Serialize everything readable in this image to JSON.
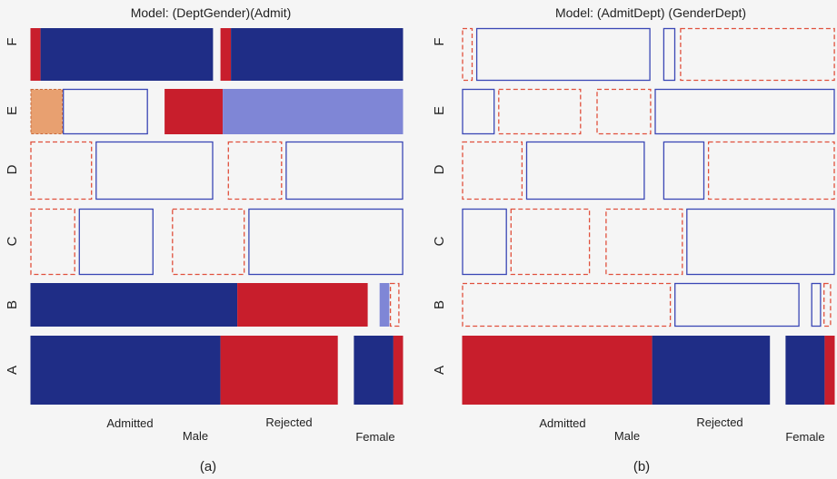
{
  "palette": {
    "strong_pos": "#1f2d86",
    "strong_neg": "#c81e2c",
    "mild_pos": "#7f86d6",
    "mild_neg": "#e8a070",
    "outline_pos": "#3a47b5",
    "outline_neg": "#e0503c",
    "background": "#f5f5f5"
  },
  "chart_data": [
    {
      "type": "mosaic",
      "title": "Model: (DeptGender)(Admit)",
      "caption": "(a)",
      "row_labels": [
        "F",
        "E",
        "D",
        "C",
        "B",
        "A"
      ],
      "col_labels": [
        "Admitted",
        "Male",
        "Rejected",
        "Female"
      ],
      "tiles": [
        {
          "row": "F",
          "x0": 0.0,
          "x1": 0.027,
          "shade": "strong_neg"
        },
        {
          "row": "F",
          "x0": 0.027,
          "x1": 0.49,
          "shade": "strong_pos"
        },
        {
          "row": "F",
          "x0": 0.51,
          "x1": 0.538,
          "shade": "strong_neg"
        },
        {
          "row": "F",
          "x0": 0.538,
          "x1": 1.0,
          "shade": "strong_pos"
        },
        {
          "row": "E",
          "x0": 0.0,
          "x1": 0.087,
          "shade": "mild_neg"
        },
        {
          "row": "E",
          "x0": 0.087,
          "x1": 0.315,
          "shade": "outline_pos"
        },
        {
          "row": "E",
          "x0": 0.36,
          "x1": 0.516,
          "shade": "strong_neg"
        },
        {
          "row": "E",
          "x0": 0.516,
          "x1": 1.0,
          "shade": "mild_pos"
        },
        {
          "row": "D",
          "x0": 0.0,
          "x1": 0.165,
          "shade": "outline_neg"
        },
        {
          "row": "D",
          "x0": 0.175,
          "x1": 0.49,
          "shade": "outline_pos"
        },
        {
          "row": "D",
          "x0": 0.53,
          "x1": 0.675,
          "shade": "outline_neg"
        },
        {
          "row": "D",
          "x0": 0.685,
          "x1": 1.0,
          "shade": "outline_pos"
        },
        {
          "row": "C",
          "x0": 0.0,
          "x1": 0.12,
          "shade": "outline_neg"
        },
        {
          "row": "C",
          "x0": 0.13,
          "x1": 0.33,
          "shade": "outline_pos"
        },
        {
          "row": "C",
          "x0": 0.38,
          "x1": 0.575,
          "shade": "outline_neg"
        },
        {
          "row": "C",
          "x0": 0.585,
          "x1": 1.0,
          "shade": "outline_pos"
        },
        {
          "row": "B",
          "x0": 0.0,
          "x1": 0.555,
          "shade": "strong_pos"
        },
        {
          "row": "B",
          "x0": 0.555,
          "x1": 0.905,
          "shade": "strong_neg"
        },
        {
          "row": "B",
          "x0": 0.937,
          "x1": 0.963,
          "shade": "mild_pos"
        },
        {
          "row": "B",
          "x0": 0.965,
          "x1": 0.99,
          "shade": "outline_neg"
        },
        {
          "row": "A",
          "x0": 0.0,
          "x1": 0.51,
          "shade": "strong_pos"
        },
        {
          "row": "A",
          "x0": 0.51,
          "x1": 0.825,
          "shade": "strong_neg"
        },
        {
          "row": "A",
          "x0": 0.868,
          "x1": 0.974,
          "shade": "strong_pos"
        },
        {
          "row": "A",
          "x0": 0.974,
          "x1": 1.0,
          "shade": "strong_neg"
        }
      ]
    },
    {
      "type": "mosaic",
      "title": "Model: (AdmitDept) (GenderDept)",
      "caption": "(b)",
      "row_labels": [
        "F",
        "E",
        "D",
        "C",
        "B",
        "A"
      ],
      "col_labels": [
        "Admitted",
        "Male",
        "Rejected",
        "Female"
      ],
      "tiles": [
        {
          "row": "F",
          "x0": 0.0,
          "x1": 0.028,
          "shade": "outline_neg"
        },
        {
          "row": "F",
          "x0": 0.038,
          "x1": 0.505,
          "shade": "outline_pos"
        },
        {
          "row": "F",
          "x0": 0.54,
          "x1": 0.572,
          "shade": "outline_pos"
        },
        {
          "row": "F",
          "x0": 0.585,
          "x1": 1.0,
          "shade": "outline_neg"
        },
        {
          "row": "E",
          "x0": 0.0,
          "x1": 0.087,
          "shade": "outline_pos"
        },
        {
          "row": "E",
          "x0": 0.097,
          "x1": 0.319,
          "shade": "outline_neg"
        },
        {
          "row": "E",
          "x0": 0.361,
          "x1": 0.507,
          "shade": "outline_neg"
        },
        {
          "row": "E",
          "x0": 0.517,
          "x1": 1.0,
          "shade": "outline_pos"
        },
        {
          "row": "D",
          "x0": 0.0,
          "x1": 0.162,
          "shade": "outline_neg"
        },
        {
          "row": "D",
          "x0": 0.172,
          "x1": 0.49,
          "shade": "outline_pos"
        },
        {
          "row": "D",
          "x0": 0.54,
          "x1": 0.65,
          "shade": "outline_pos"
        },
        {
          "row": "D",
          "x0": 0.66,
          "x1": 1.0,
          "shade": "outline_neg"
        },
        {
          "row": "C",
          "x0": 0.0,
          "x1": 0.12,
          "shade": "outline_pos"
        },
        {
          "row": "C",
          "x0": 0.13,
          "x1": 0.343,
          "shade": "outline_neg"
        },
        {
          "row": "C",
          "x0": 0.385,
          "x1": 0.592,
          "shade": "outline_neg"
        },
        {
          "row": "C",
          "x0": 0.602,
          "x1": 1.0,
          "shade": "outline_pos"
        },
        {
          "row": "B",
          "x0": 0.0,
          "x1": 0.56,
          "shade": "outline_neg"
        },
        {
          "row": "B",
          "x0": 0.57,
          "x1": 0.905,
          "shade": "outline_pos"
        },
        {
          "row": "B",
          "x0": 0.937,
          "x1": 0.963,
          "shade": "outline_pos"
        },
        {
          "row": "B",
          "x0": 0.97,
          "x1": 0.99,
          "shade": "outline_neg"
        },
        {
          "row": "A",
          "x0": 0.0,
          "x1": 0.51,
          "shade": "strong_neg"
        },
        {
          "row": "A",
          "x0": 0.51,
          "x1": 0.826,
          "shade": "strong_pos"
        },
        {
          "row": "A",
          "x0": 0.868,
          "x1": 0.973,
          "shade": "strong_pos"
        },
        {
          "row": "A",
          "x0": 0.973,
          "x1": 1.0,
          "shade": "strong_neg"
        }
      ]
    }
  ]
}
